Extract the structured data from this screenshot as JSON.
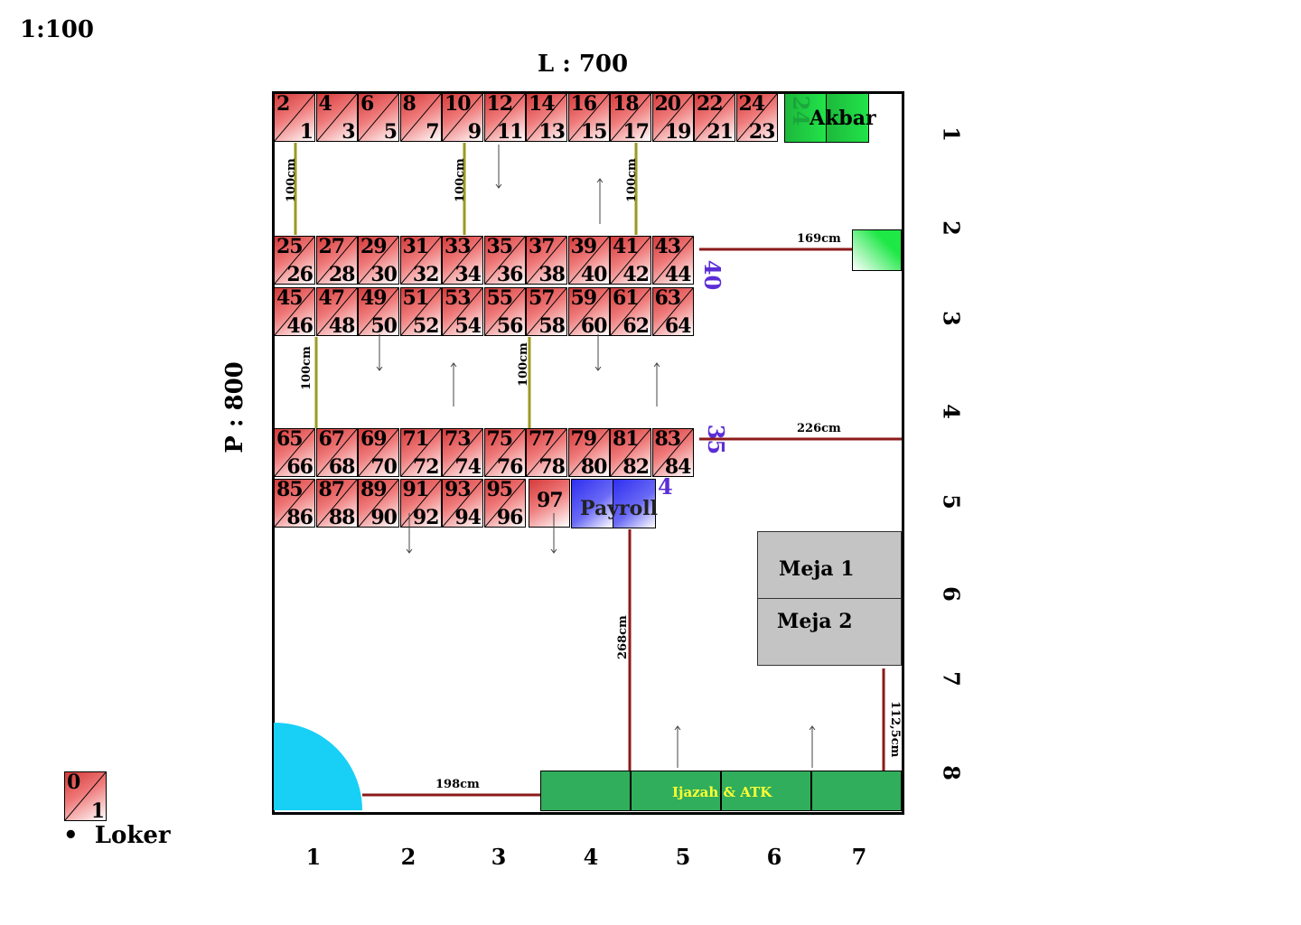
{
  "scale": "1:100",
  "room": {
    "width_label": "L : 700",
    "height_label": "P : 800"
  },
  "lockers_row1": [
    [
      "2",
      "1"
    ],
    [
      "4",
      "3"
    ],
    [
      "6",
      "5"
    ],
    [
      "8",
      "7"
    ],
    [
      "10",
      "9"
    ],
    [
      "12",
      "11"
    ],
    [
      "14",
      "13"
    ],
    [
      "16",
      "15"
    ],
    [
      "18",
      "17"
    ],
    [
      "20",
      "19"
    ],
    [
      "22",
      "21"
    ],
    [
      "24",
      "23"
    ]
  ],
  "lockers_row2": [
    [
      "25",
      "26"
    ],
    [
      "27",
      "28"
    ],
    [
      "29",
      "30"
    ],
    [
      "31",
      "32"
    ],
    [
      "33",
      "34"
    ],
    [
      "35",
      "36"
    ],
    [
      "37",
      "38"
    ],
    [
      "39",
      "40"
    ],
    [
      "41",
      "42"
    ],
    [
      "43",
      "44"
    ]
  ],
  "lockers_row3": [
    [
      "45",
      "46"
    ],
    [
      "47",
      "48"
    ],
    [
      "49",
      "50"
    ],
    [
      "51",
      "52"
    ],
    [
      "53",
      "54"
    ],
    [
      "55",
      "56"
    ],
    [
      "57",
      "58"
    ],
    [
      "59",
      "60"
    ],
    [
      "61",
      "62"
    ],
    [
      "63",
      "64"
    ]
  ],
  "lockers_row4": [
    [
      "65",
      "66"
    ],
    [
      "67",
      "68"
    ],
    [
      "69",
      "70"
    ],
    [
      "71",
      "72"
    ],
    [
      "73",
      "74"
    ],
    [
      "75",
      "76"
    ],
    [
      "77",
      "78"
    ],
    [
      "79",
      "80"
    ],
    [
      "81",
      "82"
    ],
    [
      "83",
      "84"
    ]
  ],
  "lockers_row5": [
    [
      "85",
      "86"
    ],
    [
      "87",
      "88"
    ],
    [
      "89",
      "90"
    ],
    [
      "91",
      "92"
    ],
    [
      "93",
      "94"
    ],
    [
      "95",
      "96"
    ]
  ],
  "locker_97": "97",
  "akbar": "Akbar",
  "ghost_24": "24",
  "payroll": "Payroll",
  "purple_labels": {
    "a": "40",
    "b": "35",
    "c": "4"
  },
  "dimensions": {
    "d1": "100cm",
    "d2": "100cm",
    "d3": "100cm",
    "d4": "100cm",
    "d5": "100cm",
    "d169": "169cm",
    "d226": "226cm",
    "d268": "268cm",
    "d112": "112,5cm",
    "d198": "198cm"
  },
  "tables": {
    "meja1": "Meja 1",
    "meja2": "Meja 2"
  },
  "cabinet": "Ijazah & ATK",
  "col_numbers": [
    "1",
    "2",
    "3",
    "4",
    "5",
    "6",
    "7"
  ],
  "row_numbers": [
    "1",
    "2",
    "3",
    "4",
    "5",
    "6",
    "7",
    "8"
  ],
  "legend": {
    "top": "0",
    "bottom": "1",
    "label": "Loker",
    "bullet": "•"
  },
  "colors": {
    "locker": "#d53a3a",
    "green": "#22e34a",
    "payroll": "#2e2ef0",
    "door": "#18d0f5",
    "cabinet": "#30ae5c",
    "dim_line": "#8b1a1a",
    "aisle_line": "#9a9a20",
    "purple": "#5b2dd6"
  }
}
